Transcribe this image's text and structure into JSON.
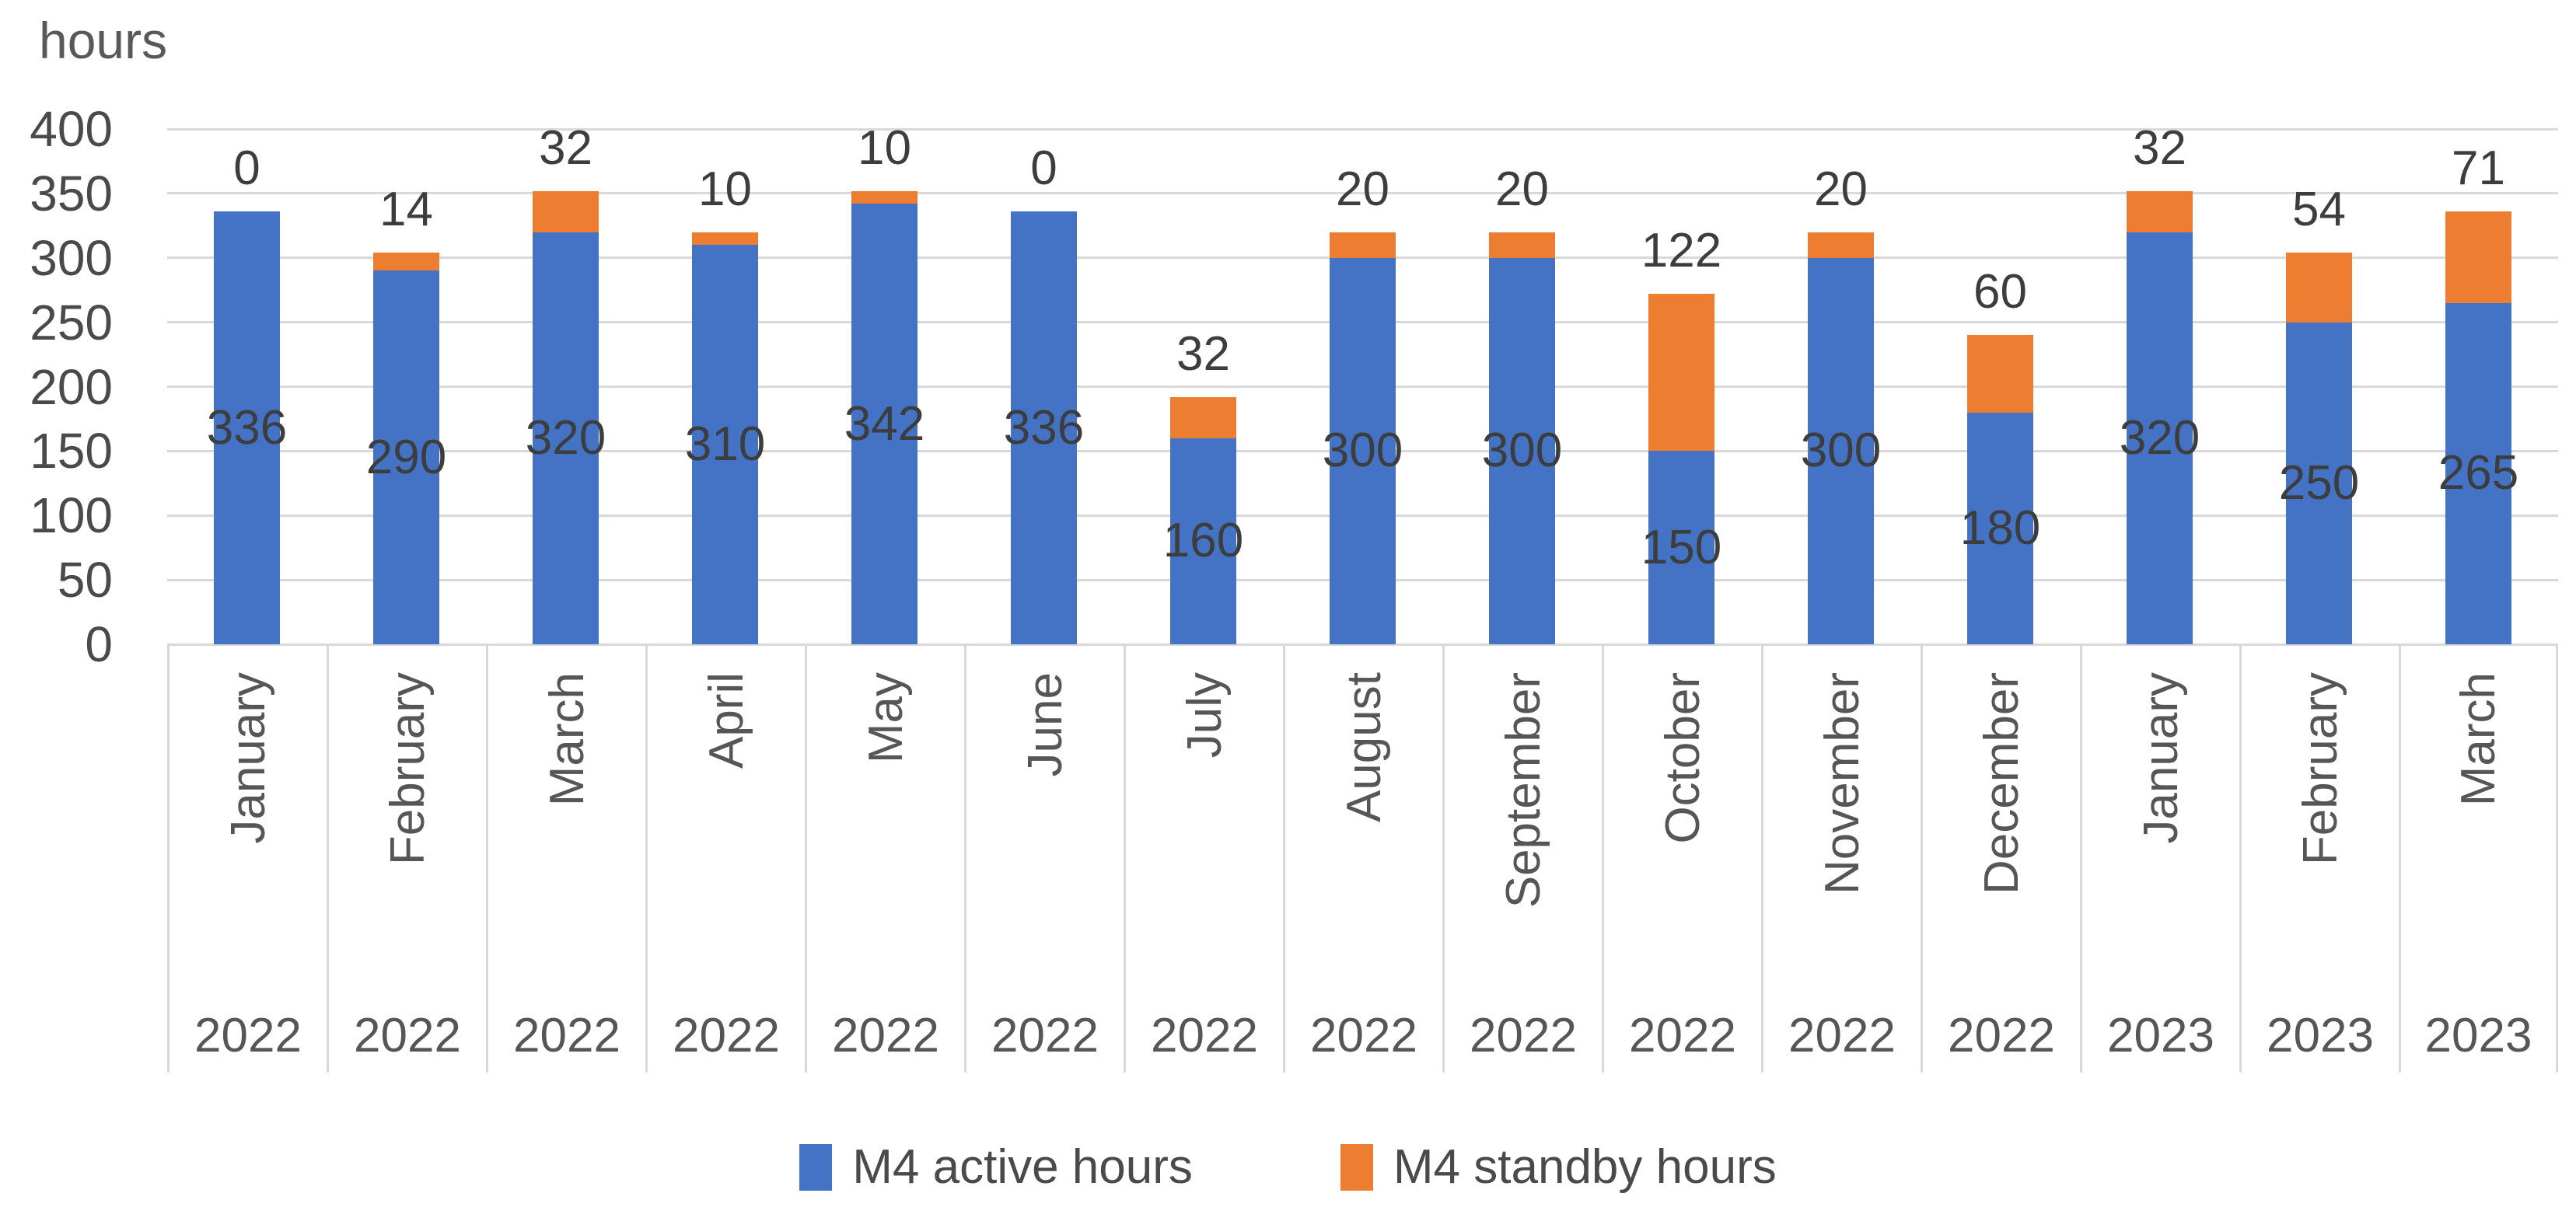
{
  "title": "hours",
  "chart_data": {
    "type": "bar",
    "stacked": true,
    "title": "",
    "ylabel": "hours",
    "xlabel": "",
    "ylim": [
      0,
      400
    ],
    "y_ticks": [
      0,
      50,
      100,
      150,
      200,
      250,
      300,
      350,
      400
    ],
    "grid": true,
    "legend_position": "bottom",
    "categories": [
      {
        "month": "January",
        "year": "2022"
      },
      {
        "month": "February",
        "year": "2022"
      },
      {
        "month": "March",
        "year": "2022"
      },
      {
        "month": "April",
        "year": "2022"
      },
      {
        "month": "May",
        "year": "2022"
      },
      {
        "month": "June",
        "year": "2022"
      },
      {
        "month": "July",
        "year": "2022"
      },
      {
        "month": "August",
        "year": "2022"
      },
      {
        "month": "September",
        "year": "2022"
      },
      {
        "month": "October",
        "year": "2022"
      },
      {
        "month": "November",
        "year": "2022"
      },
      {
        "month": "December",
        "year": "2022"
      },
      {
        "month": "January",
        "year": "2023"
      },
      {
        "month": "February",
        "year": "2023"
      },
      {
        "month": "March",
        "year": "2023"
      }
    ],
    "series": [
      {
        "name": "M4 active hours",
        "color": "#4472C4",
        "values": [
          336,
          290,
          320,
          310,
          342,
          336,
          160,
          300,
          300,
          150,
          300,
          180,
          320,
          250,
          265
        ]
      },
      {
        "name": "M4 standby hours",
        "color": "#ED7D31",
        "values": [
          0,
          14,
          32,
          10,
          10,
          0,
          32,
          20,
          20,
          122,
          20,
          60,
          32,
          54,
          71
        ]
      }
    ]
  },
  "colors": {
    "gridline": "#d9d9d9",
    "axis_border": "#d9d9d9",
    "text": "#565656",
    "data_label": "#3d3d3d"
  }
}
